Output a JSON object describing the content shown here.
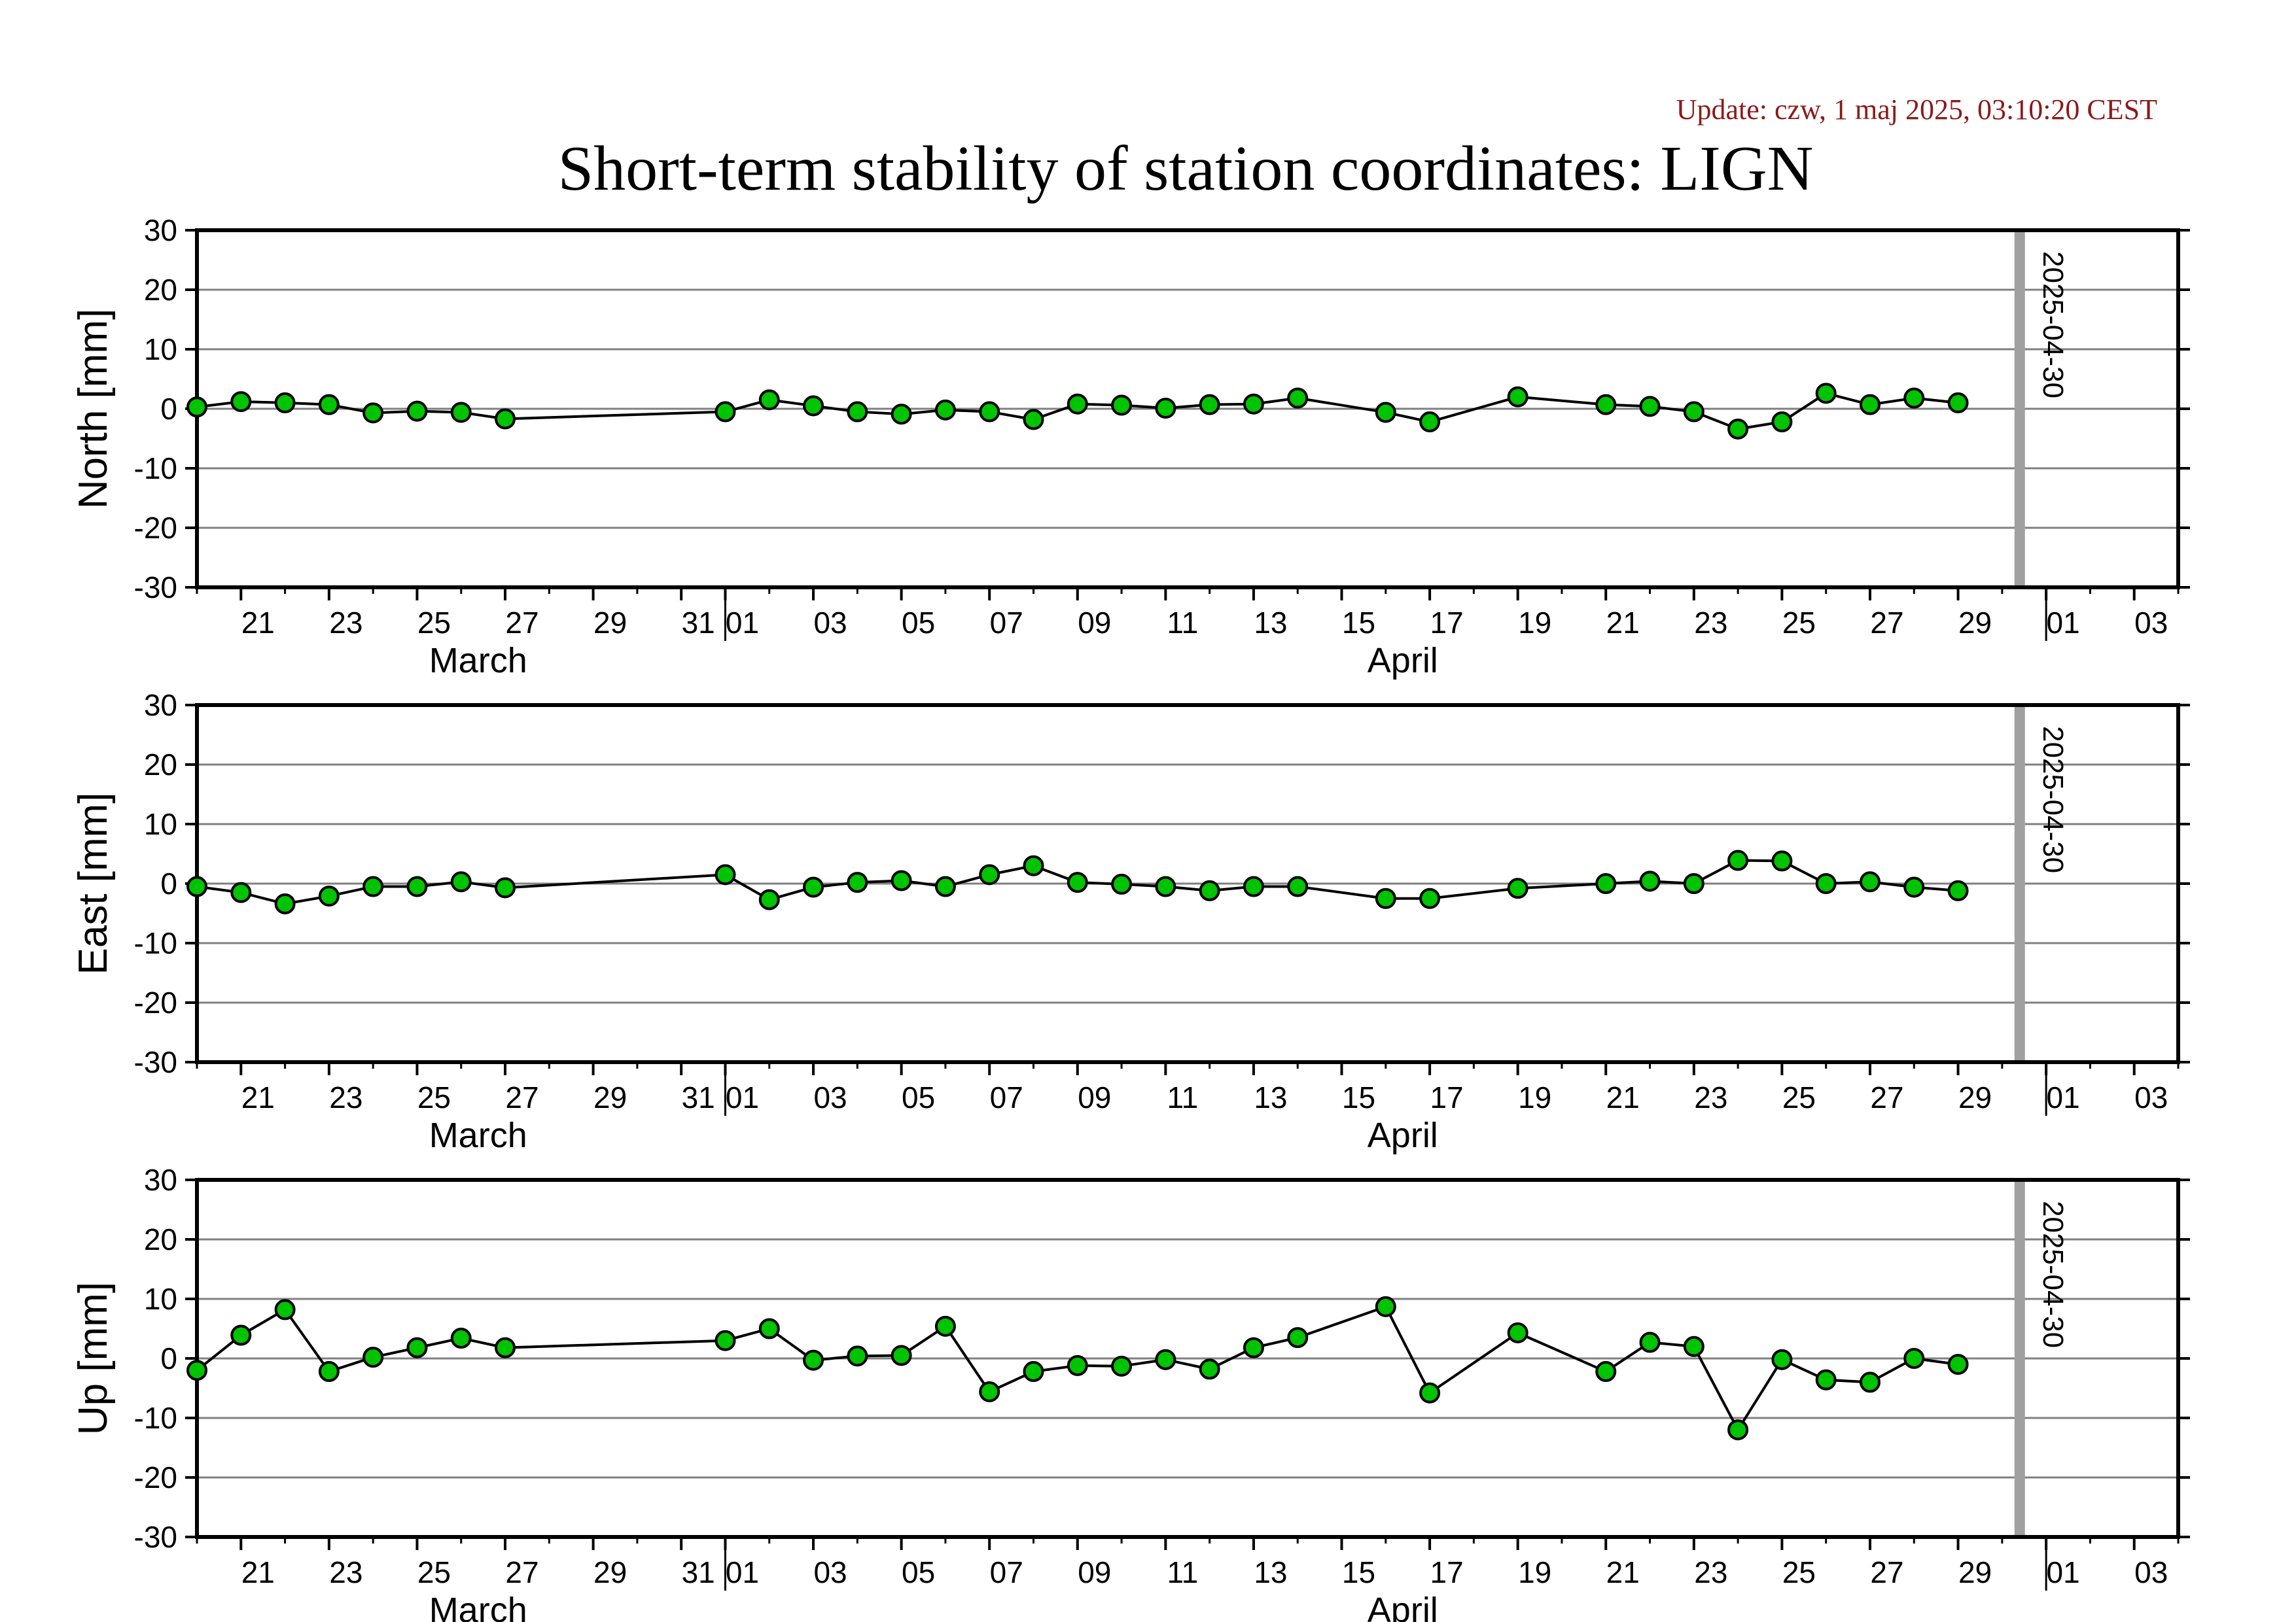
{
  "update_text": "Update: czw, 1 maj 2025, 03:10:20 CEST",
  "title": "Short-term stability of station coordinates: LIGN",
  "marker_label": "2025-04-30",
  "colors": {
    "point_fill": "#00c400",
    "line": "#000000",
    "grid": "#808080",
    "marker": "#a0a0a0",
    "update_text": "#8b1a1a"
  },
  "x_axis": {
    "start": "2025-03-20",
    "end": "2025-05-04",
    "tick_labels": [
      "21",
      "23",
      "25",
      "27",
      "29",
      "31",
      "01",
      "03",
      "05",
      "07",
      "09",
      "11",
      "13",
      "15",
      "17",
      "19",
      "21",
      "23",
      "25",
      "27",
      "29",
      "01",
      "03"
    ],
    "tick_dates": [
      "2025-03-21",
      "2025-03-23",
      "2025-03-25",
      "2025-03-27",
      "2025-03-29",
      "2025-03-31",
      "2025-04-01",
      "2025-04-03",
      "2025-04-05",
      "2025-04-07",
      "2025-04-09",
      "2025-04-11",
      "2025-04-13",
      "2025-04-15",
      "2025-04-17",
      "2025-04-19",
      "2025-04-21",
      "2025-04-23",
      "2025-04-25",
      "2025-04-27",
      "2025-04-29",
      "2025-05-01",
      "2025-05-03"
    ],
    "month_labels": [
      {
        "text": "March",
        "date": "2025-03-26"
      },
      {
        "text": "April",
        "date": "2025-04-16"
      }
    ],
    "month_boundaries": [
      "2025-04-01",
      "2025-05-01"
    ],
    "marker_date": "2025-04-30"
  },
  "chart_data": [
    {
      "type": "line",
      "ylabel": "North [mm]",
      "ylim": [
        -30,
        30
      ],
      "yticks": [
        "30",
        "20",
        "10",
        "0",
        "-10",
        "-20",
        "-30"
      ],
      "grid": true,
      "x": [
        "2025-03-20",
        "2025-03-21",
        "2025-03-22",
        "2025-03-23",
        "2025-03-24",
        "2025-03-25",
        "2025-03-26",
        "2025-03-27",
        "2025-04-01",
        "2025-04-02",
        "2025-04-03",
        "2025-04-04",
        "2025-04-05",
        "2025-04-06",
        "2025-04-07",
        "2025-04-08",
        "2025-04-09",
        "2025-04-10",
        "2025-04-11",
        "2025-04-12",
        "2025-04-13",
        "2025-04-14",
        "2025-04-16",
        "2025-04-17",
        "2025-04-19",
        "2025-04-21",
        "2025-04-22",
        "2025-04-23",
        "2025-04-24",
        "2025-04-25",
        "2025-04-26",
        "2025-04-27",
        "2025-04-28",
        "2025-04-29"
      ],
      "values": [
        0.3,
        1.2,
        1.0,
        0.7,
        -0.7,
        -0.4,
        -0.6,
        -1.7,
        -0.5,
        1.5,
        0.5,
        -0.5,
        -0.9,
        -0.2,
        -0.5,
        -1.8,
        0.8,
        0.6,
        0.1,
        0.7,
        0.8,
        1.8,
        -0.6,
        -2.2,
        2.0,
        0.7,
        0.4,
        -0.5,
        -3.4,
        -2.2,
        2.6,
        0.7,
        1.8,
        1.0
      ]
    },
    {
      "type": "line",
      "ylabel": "East [mm]",
      "ylim": [
        -30,
        30
      ],
      "yticks": [
        "30",
        "20",
        "10",
        "0",
        "-10",
        "-20",
        "-30"
      ],
      "grid": true,
      "x": [
        "2025-03-20",
        "2025-03-21",
        "2025-03-22",
        "2025-03-23",
        "2025-03-24",
        "2025-03-25",
        "2025-03-26",
        "2025-03-27",
        "2025-04-01",
        "2025-04-02",
        "2025-04-03",
        "2025-04-04",
        "2025-04-05",
        "2025-04-06",
        "2025-04-07",
        "2025-04-08",
        "2025-04-09",
        "2025-04-10",
        "2025-04-11",
        "2025-04-12",
        "2025-04-13",
        "2025-04-14",
        "2025-04-16",
        "2025-04-17",
        "2025-04-19",
        "2025-04-21",
        "2025-04-22",
        "2025-04-23",
        "2025-04-24",
        "2025-04-25",
        "2025-04-26",
        "2025-04-27",
        "2025-04-28",
        "2025-04-29"
      ],
      "values": [
        -0.5,
        -1.5,
        -3.4,
        -2.1,
        -0.5,
        -0.5,
        0.3,
        -0.7,
        1.5,
        -2.7,
        -0.6,
        0.2,
        0.5,
        -0.5,
        1.5,
        3.0,
        0.2,
        -0.1,
        -0.5,
        -1.2,
        -0.5,
        -0.5,
        -2.5,
        -2.5,
        -0.8,
        0.0,
        0.4,
        0.0,
        3.9,
        3.8,
        0.0,
        0.3,
        -0.6,
        -1.2
      ]
    },
    {
      "type": "line",
      "ylabel": "Up [mm]",
      "ylim": [
        -30,
        30
      ],
      "yticks": [
        "30",
        "20",
        "10",
        "0",
        "-10",
        "-20",
        "-30"
      ],
      "grid": true,
      "x": [
        "2025-03-20",
        "2025-03-21",
        "2025-03-22",
        "2025-03-23",
        "2025-03-24",
        "2025-03-25",
        "2025-03-26",
        "2025-03-27",
        "2025-04-01",
        "2025-04-02",
        "2025-04-03",
        "2025-04-04",
        "2025-04-05",
        "2025-04-06",
        "2025-04-07",
        "2025-04-08",
        "2025-04-09",
        "2025-04-10",
        "2025-04-11",
        "2025-04-12",
        "2025-04-13",
        "2025-04-14",
        "2025-04-16",
        "2025-04-17",
        "2025-04-19",
        "2025-04-21",
        "2025-04-22",
        "2025-04-23",
        "2025-04-24",
        "2025-04-25",
        "2025-04-26",
        "2025-04-27",
        "2025-04-28",
        "2025-04-29"
      ],
      "values": [
        -2.0,
        3.9,
        8.2,
        -2.2,
        0.2,
        1.8,
        3.4,
        1.8,
        3.0,
        5.0,
        -0.3,
        0.4,
        0.5,
        5.4,
        -5.6,
        -2.2,
        -1.2,
        -1.3,
        -0.2,
        -1.8,
        1.8,
        3.5,
        8.7,
        -5.8,
        4.3,
        -2.2,
        2.7,
        2.0,
        -12.0,
        -0.2,
        -3.6,
        -4.0,
        0.0,
        -1.0
      ]
    }
  ]
}
